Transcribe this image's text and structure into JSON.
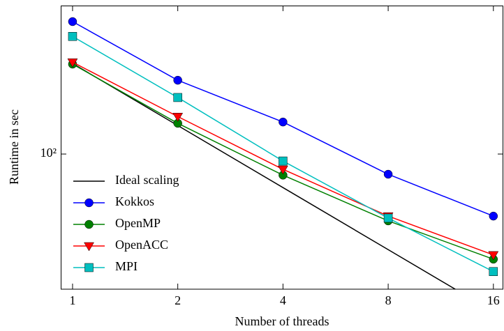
{
  "chart_data": {
    "type": "line",
    "x_label": "Number of threads",
    "y_label": "Runtime in sec",
    "x": [
      1,
      2,
      4,
      8,
      16
    ],
    "series": [
      {
        "name": "Ideal scaling",
        "color": "#000000",
        "marker": "none",
        "values": [
          275,
          137.5,
          68.75,
          34.375,
          17.1875
        ]
      },
      {
        "name": "Kokkos",
        "color": "#0000ff",
        "marker": "circle",
        "values": [
          439,
          228,
          143,
          79.8,
          50
        ]
      },
      {
        "name": "OpenMP",
        "color": "#008000",
        "marker": "circle",
        "values": [
          273,
          141,
          79,
          47.4,
          30.9
        ]
      },
      {
        "name": "OpenACC",
        "color": "#ff0000",
        "marker": "triangle-down",
        "values": [
          279,
          152,
          84.3,
          50,
          32.4
        ]
      },
      {
        "name": "MPI",
        "color": "#00bfbf",
        "marker": "square",
        "values": [
          372,
          188,
          92.5,
          48.9,
          26.9
        ]
      }
    ],
    "xlim": [
      0.925,
      17.08
    ],
    "ylim": [
      22.1,
      525
    ],
    "xticks": [
      1,
      2,
      4,
      8,
      16
    ],
    "yticks": [
      {
        "value": 100,
        "label": "10²"
      }
    ],
    "xscale": "log",
    "yscale": "log",
    "legend": "lower left"
  }
}
